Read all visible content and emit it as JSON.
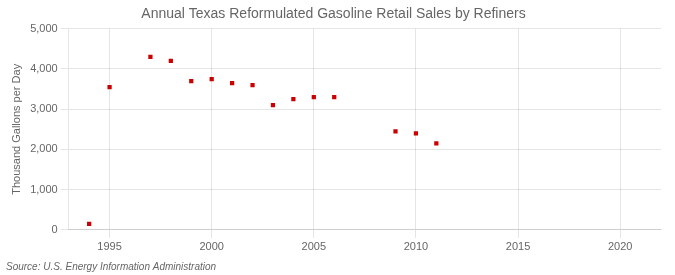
{
  "chart_data": {
    "type": "scatter",
    "title": "Annual Texas Reformulated Gasoline Retail Sales by Refiners",
    "ylabel": "Thousand Gallons per Day",
    "annotations": [
      "Source: U.S. Energy Information Administration"
    ],
    "x": [
      1994,
      1995,
      1997,
      1998,
      1999,
      2000,
      2001,
      2002,
      2003,
      2004,
      2005,
      2006,
      2009,
      2010,
      2011
    ],
    "values": [
      150,
      3550,
      4300,
      4200,
      3700,
      3750,
      3650,
      3600,
      3100,
      3250,
      3300,
      3300,
      2450,
      2400,
      2150
    ],
    "color": "#cc0000",
    "marker": "square",
    "xlim": [
      1993,
      2022
    ],
    "xticks": [
      1995,
      2000,
      2005,
      2010,
      2015,
      2020
    ],
    "ylim": [
      0,
      5000
    ],
    "yticks": [
      0,
      {
        "value": 1000,
        "label": "1,000"
      },
      {
        "value": 2000,
        "label": "2,000"
      },
      {
        "value": 3000,
        "label": "3,000"
      },
      {
        "value": 4000,
        "label": "4,000"
      },
      {
        "value": 5000,
        "label": "5,000"
      }
    ],
    "grid": true
  }
}
